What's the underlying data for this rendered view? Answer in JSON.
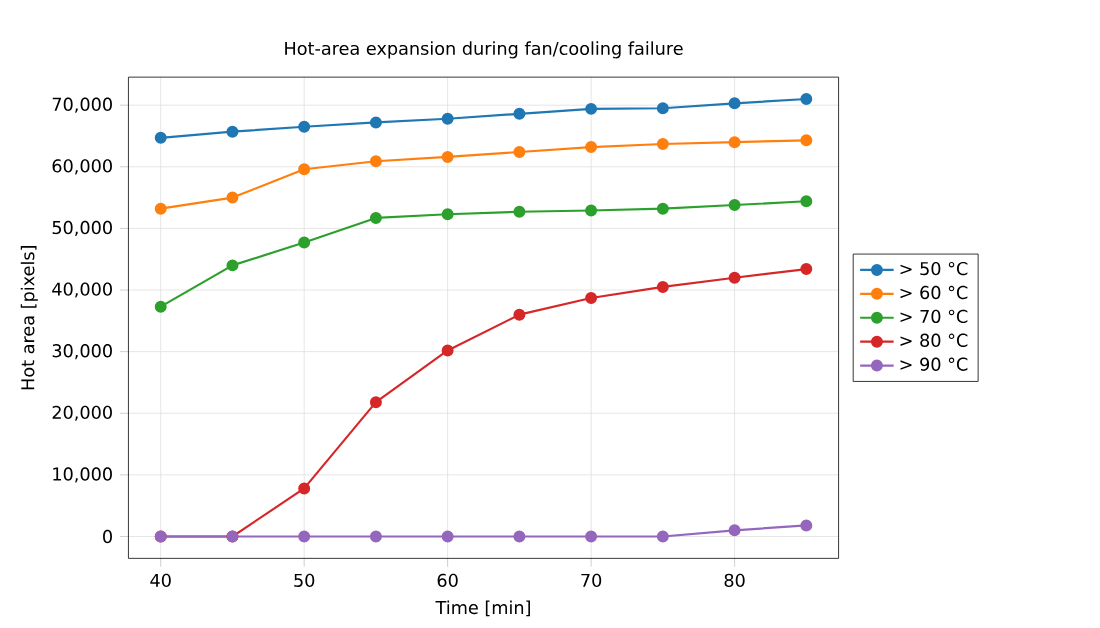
{
  "chart_data": {
    "type": "line",
    "title": "Hot-area expansion during fan/cooling failure",
    "xlabel": "Time [min]",
    "ylabel": "Hot area [pixels]",
    "x": [
      40,
      45,
      50,
      55,
      60,
      65,
      70,
      75,
      80,
      85
    ],
    "series": [
      {
        "name": "> 50 °C",
        "color": "#1f77b4",
        "values": [
          64700,
          65700,
          66500,
          67200,
          67800,
          68600,
          69400,
          69500,
          70300,
          71000
        ]
      },
      {
        "name": "> 60 °C",
        "color": "#ff7f0e",
        "values": [
          53200,
          55000,
          59600,
          60900,
          61600,
          62400,
          63200,
          63700,
          64000,
          64300
        ]
      },
      {
        "name": "> 70 °C",
        "color": "#2ca02c",
        "values": [
          37300,
          44000,
          47700,
          51700,
          52300,
          52700,
          52900,
          53200,
          53800,
          54400
        ]
      },
      {
        "name": "> 80 °C",
        "color": "#d62728",
        "values": [
          0,
          0,
          7800,
          21800,
          30200,
          36000,
          38700,
          40500,
          42000,
          43400
        ]
      },
      {
        "name": "> 90 °C",
        "color": "#9467bd",
        "values": [
          0,
          0,
          0,
          0,
          0,
          0,
          0,
          0,
          1000,
          1800
        ]
      }
    ],
    "xlim": [
      37.75,
      87.25
    ],
    "ylim": [
      -3550,
      74550
    ],
    "xticks": [
      40,
      50,
      60,
      70,
      80
    ],
    "yticks": [
      {
        "value": 0,
        "label": "0"
      },
      {
        "value": 10000,
        "label": "10,000"
      },
      {
        "value": 20000,
        "label": "20,000"
      },
      {
        "value": 30000,
        "label": "30,000"
      },
      {
        "value": 40000,
        "label": "40,000"
      },
      {
        "value": 50000,
        "label": "50,000"
      },
      {
        "value": 60000,
        "label": "60,000"
      },
      {
        "value": 70000,
        "label": "70,000"
      }
    ],
    "grid": true,
    "legend": "right",
    "marker": "circle",
    "line_style": "solid"
  }
}
